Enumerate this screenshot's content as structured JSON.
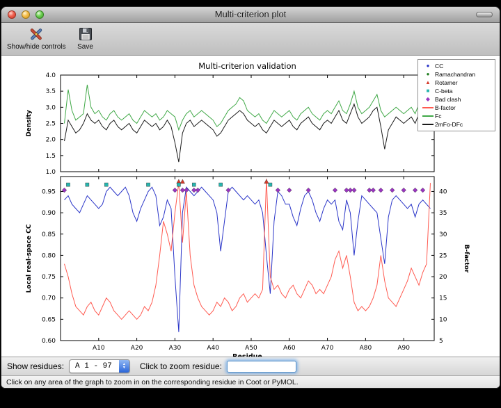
{
  "window": {
    "title": "Multi-criterion plot"
  },
  "toolbar": {
    "buttons": [
      {
        "label": "Show/hide controls",
        "icon": "tools-icon"
      },
      {
        "label": "Save",
        "icon": "save-icon"
      }
    ]
  },
  "figure": {
    "legend": {
      "position": "top-right",
      "entries": [
        {
          "label": "CC",
          "glyph": "circle",
          "color": "#2a35c8"
        },
        {
          "label": "Ramachandran",
          "glyph": "circle",
          "color": "#1e7d1e"
        },
        {
          "label": "Rotamer",
          "glyph": "triangle",
          "color": "#d43a2a"
        },
        {
          "label": "C-beta",
          "glyph": "square",
          "color": "#27b5ae"
        },
        {
          "label": "Bad clash",
          "glyph": "diamond",
          "color": "#9a35c0"
        },
        {
          "label": "B-factor",
          "glyph": "line",
          "color": "#ff5a50"
        },
        {
          "label": "Fc",
          "glyph": "line",
          "color": "#3fa846"
        },
        {
          "label": "2mFo-DFc",
          "glyph": "line",
          "color": "#1a1a1a"
        }
      ]
    }
  },
  "chart_data": [
    {
      "type": "line",
      "title": "Multi-criterion validation",
      "ylabel": "Density",
      "ylim": [
        1.0,
        4.0
      ],
      "yticks": [
        1.0,
        1.5,
        2.0,
        2.5,
        3.0,
        3.5,
        4.0
      ],
      "x_range": [
        0,
        98
      ],
      "grid": false,
      "series": [
        {
          "name": "Fc",
          "color": "#3fa846",
          "values": [
            2.5,
            3.55,
            2.9,
            2.6,
            2.7,
            2.8,
            3.7,
            3.0,
            2.8,
            2.9,
            2.7,
            2.6,
            2.8,
            2.9,
            2.7,
            2.6,
            2.7,
            2.8,
            2.6,
            2.5,
            2.7,
            2.9,
            2.8,
            2.7,
            2.8,
            2.6,
            2.7,
            2.9,
            2.8,
            2.7,
            2.3,
            2.6,
            2.8,
            2.9,
            2.7,
            2.8,
            2.9,
            2.8,
            2.7,
            2.6,
            2.4,
            2.5,
            2.7,
            2.9,
            3.0,
            3.1,
            3.3,
            3.2,
            2.9,
            2.8,
            2.7,
            2.8,
            2.6,
            2.5,
            2.7,
            2.9,
            2.8,
            2.7,
            2.8,
            2.9,
            2.7,
            2.6,
            2.8,
            2.9,
            3.0,
            2.8,
            2.7,
            2.6,
            2.8,
            2.9,
            2.8,
            3.0,
            3.2,
            2.9,
            2.8,
            3.1,
            3.5,
            3.0,
            2.8,
            2.9,
            3.0,
            3.2,
            3.4,
            2.9,
            2.7,
            2.8,
            2.9,
            3.0,
            2.9,
            2.8,
            2.9,
            3.0,
            2.8,
            3.1,
            3.5,
            3.2,
            2.9
          ]
        },
        {
          "name": "2mFo-DFc",
          "color": "#1a1a1a",
          "values": [
            1.95,
            2.6,
            2.4,
            2.2,
            2.3,
            2.5,
            2.8,
            2.6,
            2.5,
            2.6,
            2.4,
            2.3,
            2.5,
            2.6,
            2.4,
            2.3,
            2.4,
            2.5,
            2.3,
            2.2,
            2.4,
            2.6,
            2.5,
            2.4,
            2.5,
            2.3,
            2.4,
            2.6,
            2.4,
            1.9,
            1.3,
            2.2,
            2.5,
            2.6,
            2.4,
            2.5,
            2.6,
            2.5,
            2.4,
            2.3,
            2.1,
            2.2,
            2.4,
            2.6,
            2.7,
            2.8,
            2.9,
            2.8,
            2.6,
            2.5,
            2.4,
            2.5,
            2.3,
            2.2,
            2.4,
            2.6,
            2.5,
            2.4,
            2.5,
            2.6,
            2.4,
            2.3,
            2.5,
            2.6,
            2.7,
            2.5,
            2.4,
            2.3,
            2.5,
            2.6,
            2.5,
            2.7,
            2.9,
            2.6,
            2.5,
            2.8,
            3.1,
            2.7,
            2.5,
            2.6,
            2.7,
            2.9,
            3.0,
            2.4,
            1.7,
            2.3,
            2.5,
            2.7,
            2.6,
            2.5,
            2.6,
            2.7,
            2.5,
            2.8,
            3.1,
            2.9,
            3.0
          ]
        }
      ]
    },
    {
      "type": "line+markers",
      "xlabel": "Residue",
      "ylabel_left": "Local real-space CC",
      "ylim_left": [
        0.6,
        0.985
      ],
      "yticks_left": [
        0.6,
        0.65,
        0.7,
        0.75,
        0.8,
        0.85,
        0.9,
        0.95
      ],
      "ylabel_right": "B-factor",
      "ylim_right": [
        5,
        43.5
      ],
      "yticks_right": [
        5,
        10,
        15,
        20,
        25,
        30,
        35,
        40
      ],
      "x_range": [
        0,
        98
      ],
      "grid": false,
      "xticks": [
        {
          "v": 10,
          "label": "A10"
        },
        {
          "v": 20,
          "label": "A20"
        },
        {
          "v": 30,
          "label": "A30"
        },
        {
          "v": 40,
          "label": "A40"
        },
        {
          "v": 50,
          "label": "A50"
        },
        {
          "v": 60,
          "label": "A60"
        },
        {
          "v": 70,
          "label": "A70"
        },
        {
          "v": 80,
          "label": "A80"
        },
        {
          "v": 90,
          "label": "A90"
        }
      ],
      "series": [
        {
          "name": "CC",
          "axis": "left",
          "color": "#2a35c8",
          "values": [
            0.93,
            0.94,
            0.92,
            0.91,
            0.9,
            0.92,
            0.94,
            0.93,
            0.92,
            0.91,
            0.92,
            0.95,
            0.96,
            0.95,
            0.94,
            0.95,
            0.96,
            0.94,
            0.9,
            0.88,
            0.91,
            0.93,
            0.95,
            0.96,
            0.94,
            0.87,
            0.89,
            0.93,
            0.91,
            0.75,
            0.62,
            0.9,
            0.96,
            0.95,
            0.94,
            0.95,
            0.96,
            0.95,
            0.94,
            0.93,
            0.9,
            0.81,
            0.88,
            0.95,
            0.96,
            0.95,
            0.94,
            0.93,
            0.94,
            0.93,
            0.92,
            0.93,
            0.9,
            0.8,
            0.71,
            0.88,
            0.95,
            0.94,
            0.92,
            0.92,
            0.89,
            0.87,
            0.91,
            0.94,
            0.95,
            0.93,
            0.9,
            0.88,
            0.91,
            0.93,
            0.92,
            0.93,
            0.88,
            0.86,
            0.93,
            0.9,
            0.8,
            0.88,
            0.94,
            0.93,
            0.92,
            0.91,
            0.9,
            0.84,
            0.78,
            0.89,
            0.93,
            0.94,
            0.93,
            0.92,
            0.91,
            0.92,
            0.89,
            0.92,
            0.93,
            0.92,
            0.91
          ]
        },
        {
          "name": "B-factor",
          "axis": "right",
          "color": "#ff5a50",
          "values": [
            23,
            20,
            16,
            13,
            12,
            11,
            13,
            14,
            12,
            11,
            13,
            15,
            14,
            12,
            11,
            10,
            11,
            12,
            11,
            10,
            11,
            13,
            12,
            14,
            18,
            25,
            33,
            30,
            26,
            35,
            42,
            28,
            40,
            25,
            18,
            15,
            13,
            12,
            11,
            12,
            14,
            13,
            15,
            14,
            12,
            13,
            15,
            16,
            14,
            15,
            16,
            15,
            17,
            43,
            20,
            17,
            18,
            16,
            15,
            17,
            18,
            16,
            15,
            17,
            19,
            18,
            16,
            17,
            16,
            18,
            20,
            24,
            26,
            22,
            25,
            20,
            14,
            12,
            13,
            12,
            13,
            15,
            18,
            25,
            19,
            15,
            14,
            13,
            15,
            17,
            19,
            22,
            20,
            18,
            21,
            23,
            42
          ]
        }
      ],
      "markers": [
        {
          "name": "Rotamer",
          "shape": "triangle",
          "color": "#d43a2a",
          "y": 0.973,
          "residues": [
            31,
            32,
            54
          ]
        },
        {
          "name": "C-beta",
          "shape": "square",
          "color": "#27b5ae",
          "y": 0.966,
          "residues": [
            2,
            7,
            12,
            23,
            31,
            35,
            42,
            55
          ]
        },
        {
          "name": "Bad clash",
          "shape": "diamond",
          "color": "#9a35c0",
          "y": 0.953,
          "residues": [
            1,
            30,
            32,
            33,
            35,
            36,
            44,
            57,
            60,
            65,
            72,
            75,
            76,
            77,
            81,
            82,
            84,
            87,
            90,
            93,
            95
          ]
        }
      ]
    }
  ],
  "controls": {
    "show_residues_label": "Show residues:",
    "residue_range_value": "A  1 - 97",
    "zoom_label": "Click to zoom residue:",
    "zoom_value": ""
  },
  "status_bar": {
    "text": "Click on any area of the graph to zoom in on the corresponding residue in Coot or PyMOL."
  }
}
